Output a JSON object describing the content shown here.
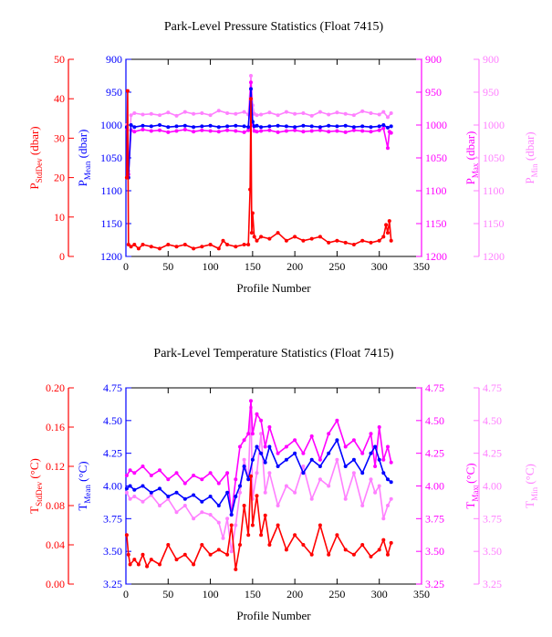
{
  "chart_data": [
    {
      "type": "line",
      "title": "Park-Level Pressure Statistics (Float 7415)",
      "xlabel": "Profile Number",
      "xlim": [
        0,
        350
      ],
      "xticks": [
        "0",
        "50",
        "100",
        "150",
        "200",
        "250",
        "300",
        "350"
      ],
      "grid": false,
      "axes": [
        {
          "id": "std",
          "side": "left-outer",
          "label": "P",
          "sub": "StdDev",
          "unit": " (dbar)",
          "color": "#ff0000",
          "ylim": [
            0,
            50
          ],
          "inverted": false,
          "ticks": [
            "0",
            "10",
            "20",
            "30",
            "40",
            "50"
          ]
        },
        {
          "id": "mean",
          "side": "left-inner",
          "label": "P",
          "sub": "Mean",
          "unit": " (dbar)",
          "color": "#0000ff",
          "ylim": [
            900,
            1200
          ],
          "inverted": true,
          "ticks": [
            "900",
            "950",
            "1000",
            "1050",
            "1100",
            "1150",
            "1200"
          ]
        },
        {
          "id": "max",
          "side": "right-inner",
          "label": "P",
          "sub": "Max",
          "unit": " (dbar)",
          "color": "#ff00ff",
          "ylim": [
            900,
            1200
          ],
          "inverted": true,
          "ticks": [
            "900",
            "950",
            "1000",
            "1050",
            "1100",
            "1150",
            "1200"
          ]
        },
        {
          "id": "min",
          "side": "right-outer",
          "label": "P",
          "sub": "Min",
          "unit": " (dbar)",
          "color": "#ff80ff",
          "ylim": [
            900,
            1200
          ],
          "inverted": true,
          "ticks": [
            "900",
            "950",
            "1000",
            "1050",
            "1100",
            "1150",
            "1200"
          ]
        }
      ],
      "series": [
        {
          "axis": "min",
          "color": "#ff80ff",
          "x": [
            1,
            3,
            6,
            10,
            20,
            30,
            40,
            50,
            60,
            70,
            80,
            90,
            100,
            110,
            120,
            130,
            140,
            145,
            148,
            150,
            152,
            155,
            160,
            170,
            180,
            190,
            200,
            210,
            220,
            230,
            240,
            250,
            260,
            270,
            280,
            290,
            300,
            305,
            310,
            314
          ],
          "y": [
            1000,
            1070,
            985,
            982,
            984,
            983,
            985,
            981,
            986,
            980,
            983,
            982,
            985,
            978,
            982,
            983,
            980,
            984,
            925,
            970,
            983,
            985,
            984,
            981,
            985,
            980,
            983,
            982,
            986,
            980,
            984,
            981,
            983,
            985,
            979,
            982,
            984,
            980,
            988,
            982
          ]
        },
        {
          "axis": "max",
          "color": "#ff00ff",
          "x": [
            1,
            3,
            6,
            10,
            20,
            30,
            40,
            50,
            60,
            70,
            80,
            90,
            100,
            110,
            120,
            130,
            140,
            145,
            148,
            150,
            152,
            155,
            160,
            170,
            180,
            190,
            200,
            210,
            220,
            230,
            240,
            250,
            260,
            270,
            280,
            290,
            300,
            305,
            310,
            312,
            314
          ],
          "y": [
            1005,
            1075,
            1008,
            1010,
            1007,
            1009,
            1008,
            1011,
            1009,
            1007,
            1010,
            1008,
            1009,
            1010,
            1008,
            1009,
            1011,
            1008,
            935,
            1000,
            1009,
            1010,
            1009,
            1008,
            1011,
            1009,
            1008,
            1010,
            1009,
            1008,
            1010,
            1009,
            1011,
            1008,
            1009,
            1010,
            1008,
            1005,
            1035,
            1010,
            1012
          ]
        },
        {
          "axis": "mean",
          "color": "#0000ff",
          "x": [
            1,
            3,
            6,
            10,
            20,
            30,
            40,
            50,
            60,
            70,
            80,
            90,
            100,
            110,
            120,
            130,
            140,
            145,
            148,
            150,
            152,
            155,
            160,
            170,
            180,
            190,
            200,
            210,
            220,
            230,
            240,
            250,
            260,
            270,
            280,
            290,
            300,
            305,
            310,
            314
          ],
          "y": [
            1003,
            1080,
            1000,
            1003,
            1001,
            1002,
            1000,
            1003,
            1002,
            1001,
            1003,
            1002,
            1001,
            1003,
            1002,
            1001,
            1002,
            1003,
            945,
            995,
            1002,
            1001,
            1003,
            1002,
            1001,
            1002,
            1003,
            1001,
            1002,
            1003,
            1001,
            1002,
            1001,
            1003,
            1002,
            1003,
            1002,
            1000,
            1004,
            1002
          ]
        },
        {
          "axis": "std",
          "color": "#ff0000",
          "x": [
            1,
            2,
            3,
            6,
            10,
            15,
            20,
            30,
            40,
            50,
            60,
            70,
            80,
            90,
            100,
            110,
            115,
            120,
            130,
            140,
            145,
            147,
            148,
            149,
            150,
            152,
            155,
            160,
            170,
            180,
            190,
            200,
            210,
            220,
            230,
            240,
            250,
            260,
            270,
            280,
            290,
            300,
            305,
            308,
            310,
            312,
            314
          ],
          "y": [
            20,
            42,
            3,
            2.5,
            3,
            2,
            3,
            2.5,
            2,
            3,
            2.5,
            3,
            2,
            2.5,
            3,
            2,
            4,
            3,
            2.5,
            3,
            3,
            17,
            40,
            6,
            11,
            5,
            4,
            5,
            4.5,
            6,
            4,
            5,
            4,
            4.5,
            5,
            3.5,
            4,
            3.5,
            3,
            4,
            3.5,
            4,
            5,
            8,
            6,
            9,
            4
          ]
        }
      ]
    },
    {
      "type": "line",
      "title": "Park-Level Temperature Statistics (Float 7415)",
      "xlabel": "Profile Number",
      "xlim": [
        0,
        350
      ],
      "xticks": [
        "0",
        "50",
        "100",
        "150",
        "200",
        "250",
        "300",
        "350"
      ],
      "grid": false,
      "axes": [
        {
          "id": "std",
          "side": "left-outer",
          "label": "T",
          "sub": "StdDev",
          "unit": " (°C)",
          "color": "#ff0000",
          "ylim": [
            0,
            0.2
          ],
          "inverted": false,
          "ticks": [
            "0.00",
            "0.04",
            "0.08",
            "0.12",
            "0.16",
            "0.20"
          ]
        },
        {
          "id": "mean",
          "side": "left-inner",
          "label": "T",
          "sub": "Mean",
          "unit": " (°C)",
          "color": "#0000ff",
          "ylim": [
            3.25,
            4.75
          ],
          "inverted": false,
          "ticks": [
            "3.25",
            "3.50",
            "3.75",
            "4.00",
            "4.25",
            "4.50",
            "4.75"
          ]
        },
        {
          "id": "max",
          "side": "right-inner",
          "label": "T",
          "sub": "Max",
          "unit": " (°C)",
          "color": "#ff00ff",
          "ylim": [
            3.25,
            4.75
          ],
          "inverted": false,
          "ticks": [
            "3.25",
            "3.50",
            "3.75",
            "4.00",
            "4.25",
            "4.50",
            "4.75"
          ]
        },
        {
          "id": "min",
          "side": "right-outer",
          "label": "T",
          "sub": "Min",
          "unit": " (°C)",
          "color": "#ff80ff",
          "ylim": [
            3.25,
            4.75
          ],
          "inverted": false,
          "ticks": [
            "3.25",
            "3.50",
            "3.75",
            "4.00",
            "4.25",
            "4.50",
            "4.75"
          ]
        }
      ],
      "series": [
        {
          "axis": "min",
          "color": "#ff80ff",
          "x": [
            1,
            5,
            10,
            20,
            30,
            40,
            50,
            60,
            70,
            80,
            90,
            100,
            110,
            115,
            120,
            125,
            130,
            135,
            140,
            145,
            148,
            150,
            155,
            160,
            165,
            170,
            180,
            190,
            200,
            210,
            220,
            230,
            240,
            250,
            260,
            270,
            280,
            290,
            295,
            300,
            305,
            310,
            314
          ],
          "y": [
            3.95,
            3.9,
            3.92,
            3.88,
            3.93,
            3.85,
            3.9,
            3.8,
            3.85,
            3.75,
            3.8,
            3.78,
            3.72,
            3.6,
            3.75,
            3.5,
            3.7,
            3.95,
            4.2,
            4.05,
            4.6,
            3.9,
            4.1,
            4.4,
            3.95,
            4.1,
            3.85,
            4.0,
            3.95,
            4.15,
            3.9,
            4.05,
            4.0,
            4.2,
            3.9,
            4.1,
            3.85,
            4.05,
            3.95,
            4.0,
            3.75,
            3.85,
            3.9
          ]
        },
        {
          "axis": "max",
          "color": "#ff00ff",
          "x": [
            1,
            5,
            10,
            20,
            30,
            40,
            50,
            60,
            70,
            80,
            90,
            100,
            110,
            120,
            125,
            130,
            135,
            140,
            145,
            148,
            150,
            155,
            160,
            165,
            170,
            180,
            190,
            200,
            210,
            220,
            230,
            240,
            250,
            260,
            270,
            280,
            290,
            295,
            300,
            305,
            310,
            314
          ],
          "y": [
            4.08,
            4.12,
            4.1,
            4.15,
            4.08,
            4.12,
            4.05,
            4.1,
            4.02,
            4.08,
            4.05,
            4.1,
            4.02,
            4.1,
            3.78,
            4.05,
            4.3,
            4.35,
            4.4,
            4.65,
            4.4,
            4.55,
            4.5,
            4.3,
            4.45,
            4.25,
            4.3,
            4.35,
            4.25,
            4.38,
            4.2,
            4.4,
            4.5,
            4.3,
            4.35,
            4.25,
            4.4,
            4.15,
            4.45,
            4.2,
            4.3,
            4.18
          ]
        },
        {
          "axis": "mean",
          "color": "#0000ff",
          "x": [
            1,
            5,
            10,
            20,
            30,
            40,
            50,
            60,
            70,
            80,
            90,
            100,
            110,
            120,
            125,
            130,
            135,
            140,
            145,
            150,
            155,
            160,
            165,
            170,
            180,
            190,
            200,
            210,
            220,
            230,
            240,
            250,
            260,
            270,
            280,
            290,
            295,
            300,
            305,
            310,
            314
          ],
          "y": [
            3.98,
            4.0,
            3.97,
            4.0,
            3.95,
            3.98,
            3.92,
            3.95,
            3.9,
            3.93,
            3.88,
            3.92,
            3.85,
            3.95,
            3.78,
            3.92,
            4.0,
            4.15,
            4.05,
            4.2,
            4.3,
            4.25,
            4.18,
            4.3,
            4.15,
            4.2,
            4.25,
            4.1,
            4.2,
            4.15,
            4.25,
            4.35,
            4.15,
            4.2,
            4.1,
            4.25,
            4.3,
            4.2,
            4.1,
            4.05,
            4.03
          ]
        },
        {
          "axis": "std",
          "color": "#ff0000",
          "x": [
            1,
            3,
            5,
            10,
            15,
            20,
            25,
            30,
            40,
            50,
            60,
            70,
            80,
            90,
            100,
            110,
            120,
            125,
            130,
            135,
            140,
            145,
            148,
            150,
            155,
            160,
            165,
            170,
            180,
            190,
            200,
            210,
            220,
            230,
            240,
            250,
            260,
            270,
            280,
            290,
            300,
            305,
            310,
            314
          ],
          "y": [
            0.05,
            0.03,
            0.02,
            0.025,
            0.02,
            0.03,
            0.018,
            0.025,
            0.02,
            0.04,
            0.025,
            0.03,
            0.02,
            0.04,
            0.03,
            0.035,
            0.03,
            0.06,
            0.015,
            0.04,
            0.08,
            0.05,
            0.11,
            0.06,
            0.09,
            0.05,
            0.07,
            0.04,
            0.06,
            0.035,
            0.05,
            0.04,
            0.03,
            0.06,
            0.03,
            0.05,
            0.035,
            0.03,
            0.04,
            0.028,
            0.035,
            0.045,
            0.03,
            0.042
          ]
        }
      ]
    }
  ]
}
